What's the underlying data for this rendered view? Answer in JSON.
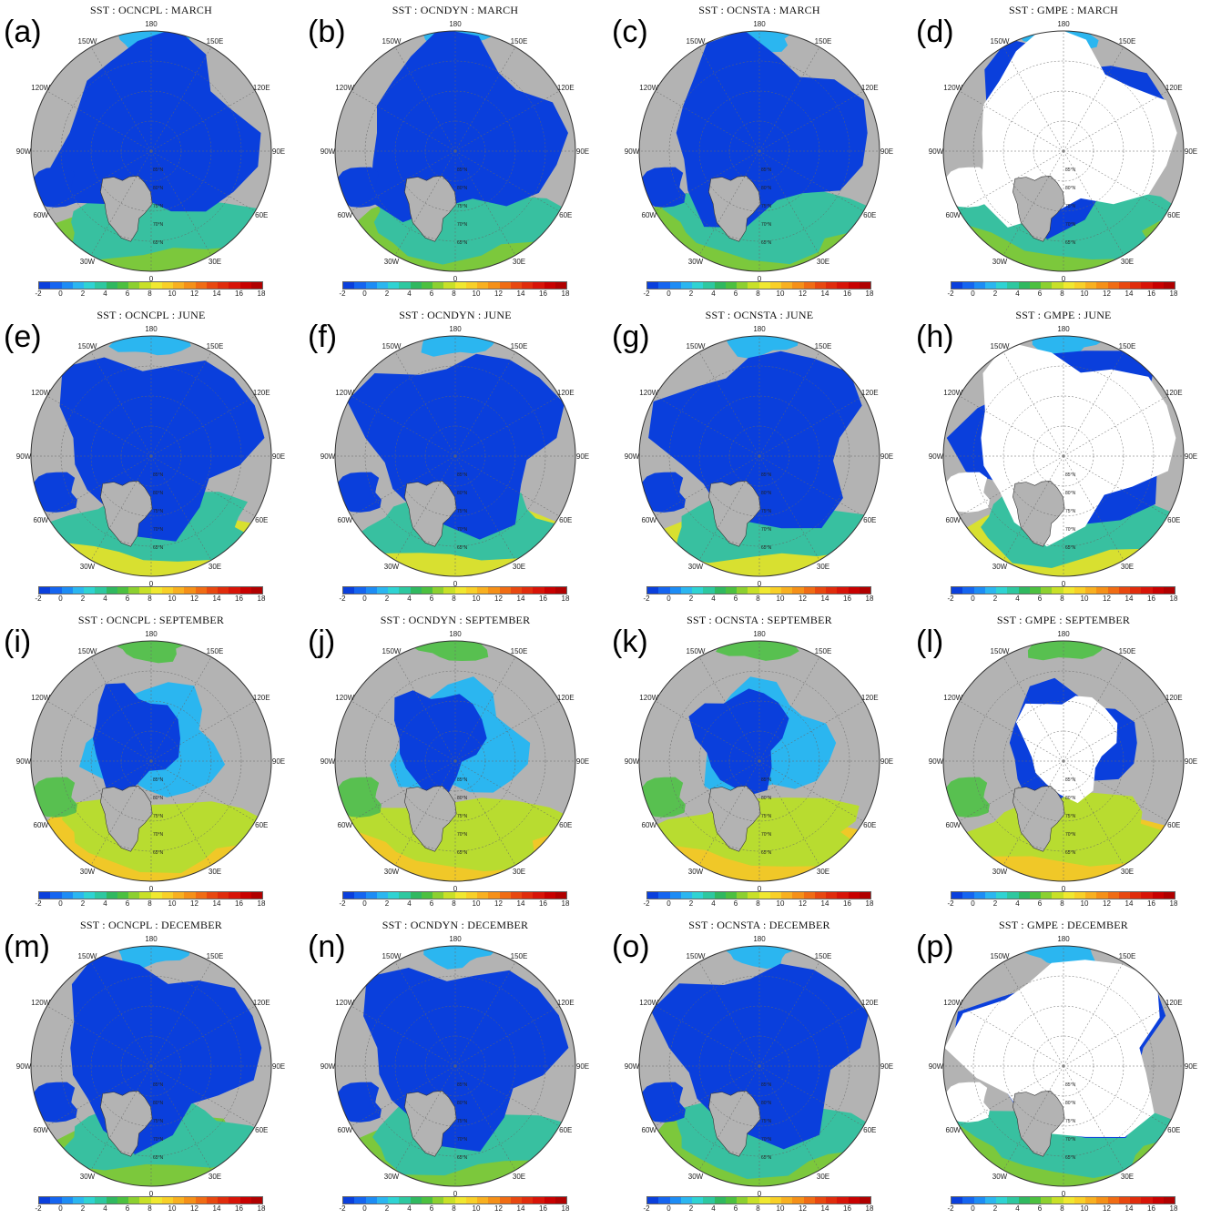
{
  "panels": [
    {
      "label": "(a)",
      "title": "SST : OCNCPL : MARCH",
      "model": "OCNCPL",
      "month": "MARCH"
    },
    {
      "label": "(b)",
      "title": "SST : OCNDYN : MARCH",
      "model": "OCNDYN",
      "month": "MARCH"
    },
    {
      "label": "(c)",
      "title": "SST : OCNSTA : MARCH",
      "model": "OCNSTA",
      "month": "MARCH"
    },
    {
      "label": "(d)",
      "title": "SST : GMPE : MARCH",
      "model": "GMPE",
      "month": "MARCH"
    },
    {
      "label": "(e)",
      "title": "SST : OCNCPL : JUNE",
      "model": "OCNCPL",
      "month": "JUNE"
    },
    {
      "label": "(f)",
      "title": "SST : OCNDYN : JUNE",
      "model": "OCNDYN",
      "month": "JUNE"
    },
    {
      "label": "(g)",
      "title": "SST : OCNSTA : JUNE",
      "model": "OCNSTA",
      "month": "JUNE"
    },
    {
      "label": "(h)",
      "title": "SST : GMPE : JUNE",
      "model": "GMPE",
      "month": "JUNE"
    },
    {
      "label": "(i)",
      "title": "SST : OCNCPL : SEPTEMBER",
      "model": "OCNCPL",
      "month": "SEPTEMBER"
    },
    {
      "label": "(j)",
      "title": "SST : OCNDYN : SEPTEMBER",
      "model": "OCNDYN",
      "month": "SEPTEMBER"
    },
    {
      "label": "(k)",
      "title": "SST : OCNSTA : SEPTEMBER",
      "model": "OCNSTA",
      "month": "SEPTEMBER"
    },
    {
      "label": "(l)",
      "title": "SST : GMPE : SEPTEMBER",
      "model": "GMPE",
      "month": "SEPTEMBER"
    },
    {
      "label": "(m)",
      "title": "SST : OCNCPL : DECEMBER",
      "model": "OCNCPL",
      "month": "DECEMBER"
    },
    {
      "label": "(n)",
      "title": "SST : OCNDYN : DECEMBER",
      "model": "OCNDYN",
      "month": "DECEMBER"
    },
    {
      "label": "(o)",
      "title": "SST : OCNSTA : DECEMBER",
      "model": "OCNSTA",
      "month": "DECEMBER"
    },
    {
      "label": "(p)",
      "title": "SST : GMPE : DECEMBER",
      "model": "GMPE",
      "month": "DECEMBER"
    }
  ],
  "longitude_labels": [
    "180",
    "150E",
    "120E",
    "90E",
    "60E",
    "30E",
    "0",
    "30W",
    "60W",
    "90W",
    "120W",
    "150W"
  ],
  "latitude_labels": [
    "85°N",
    "80°N",
    "75°N",
    "70°N",
    "65°N"
  ],
  "colorbar": {
    "ticks": [
      "-2",
      "0",
      "2",
      "4",
      "6",
      "8",
      "10",
      "12",
      "14",
      "16",
      "18"
    ],
    "colors": [
      "#0a3fdc",
      "#1565f0",
      "#1d8cf5",
      "#2bb6f0",
      "#2fd3d3",
      "#2ec8a0",
      "#30b860",
      "#4cc040",
      "#8cd030",
      "#c8e028",
      "#f0e830",
      "#f8d028",
      "#f8b020",
      "#f59018",
      "#f06c14",
      "#e84810",
      "#e02c0c",
      "#d81408",
      "#c80000",
      "#b00000"
    ]
  },
  "colors": {
    "land": "#b3b3b3",
    "cold_ice_sst": "#0a3fdc",
    "gmpe_ice": "#ffffff"
  }
}
